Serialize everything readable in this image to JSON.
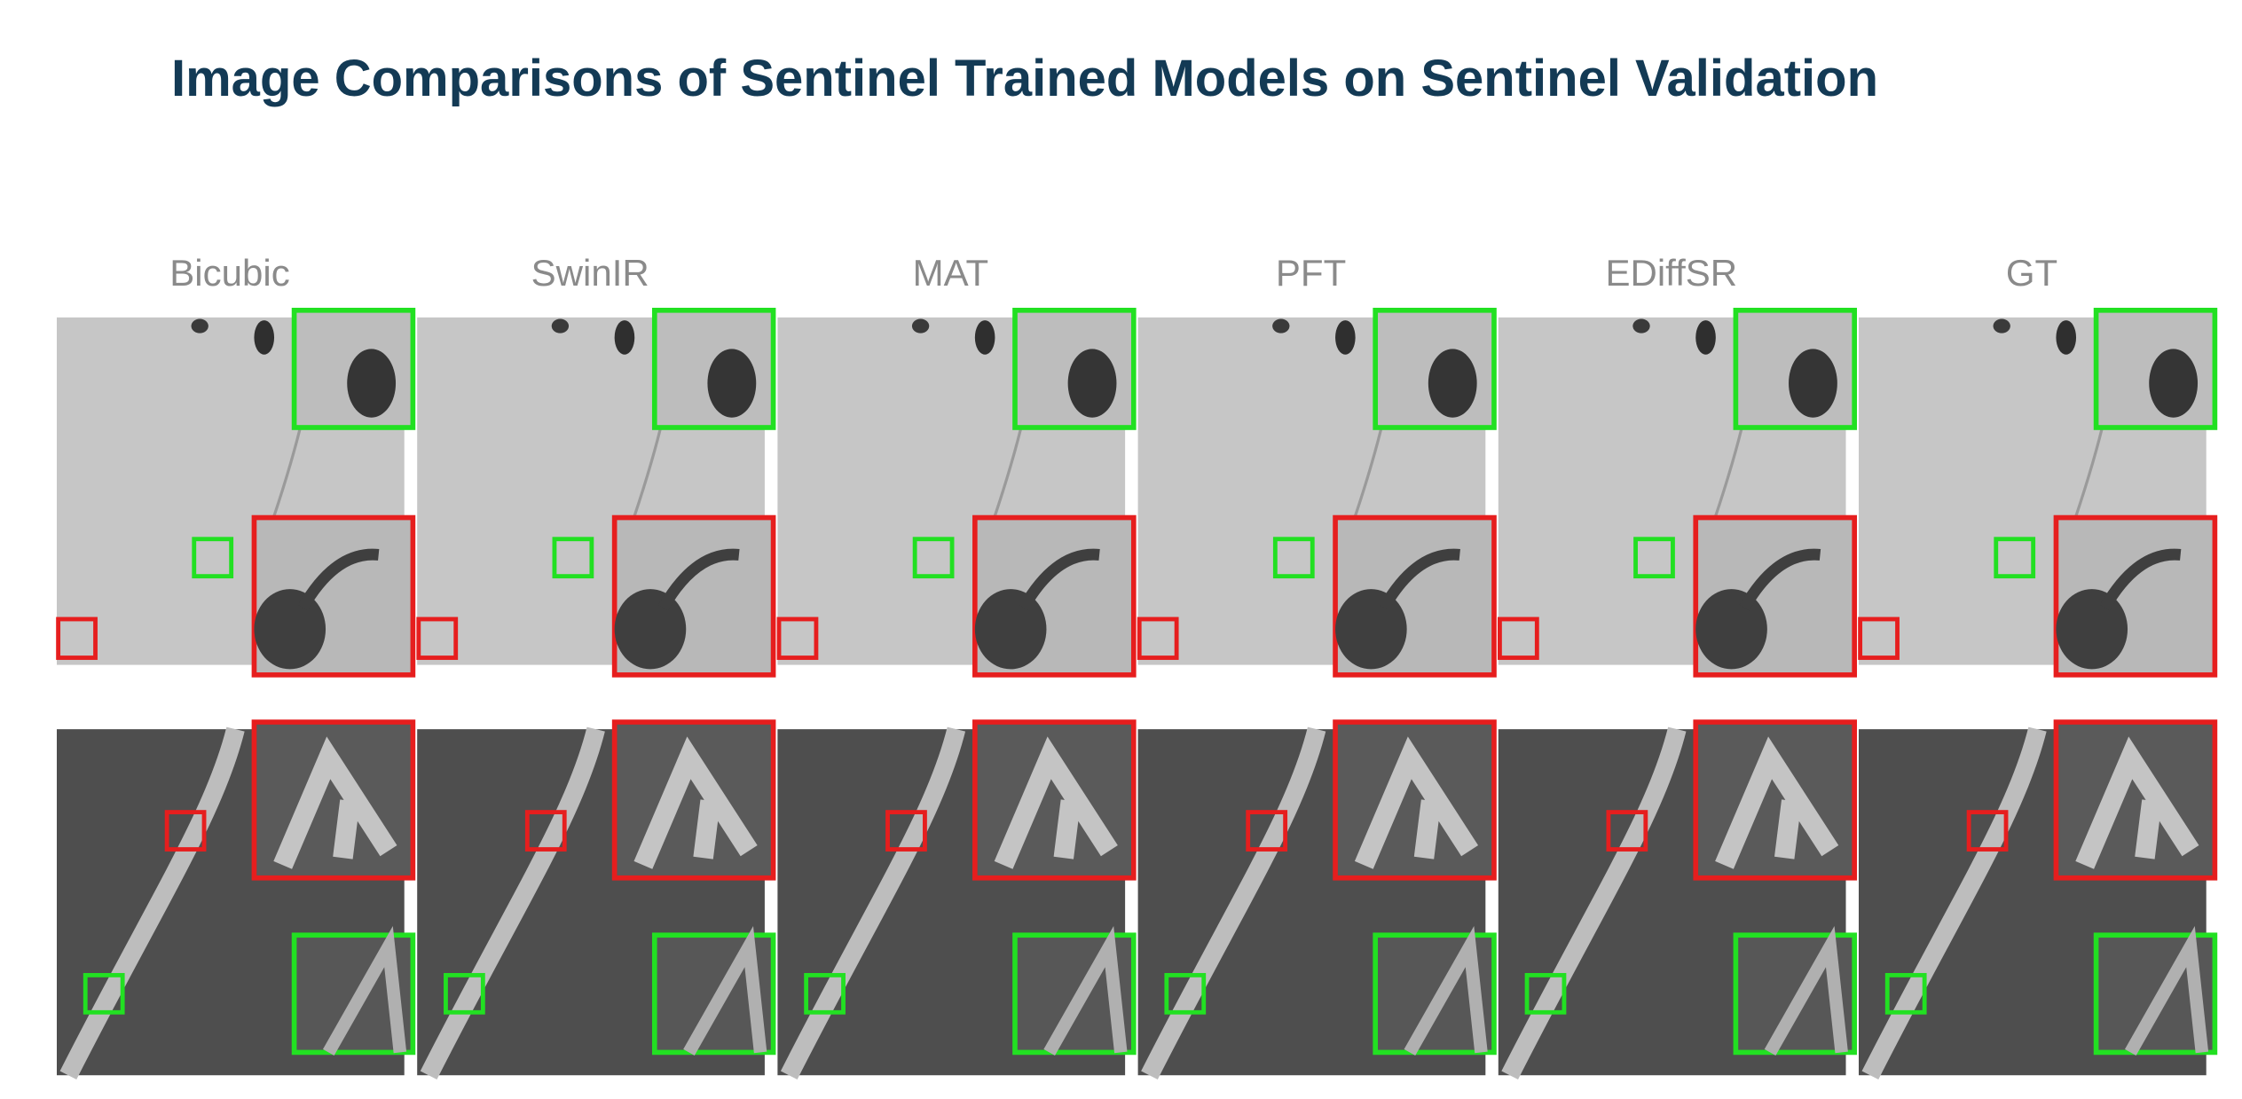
{
  "title": "Image Comparisons of Sentinel Trained Models on Sentinel Validation",
  "columns": [
    "Bicubic",
    "SwinIR",
    "MAT",
    "PFT",
    "EDiffSR",
    "GT"
  ]
}
